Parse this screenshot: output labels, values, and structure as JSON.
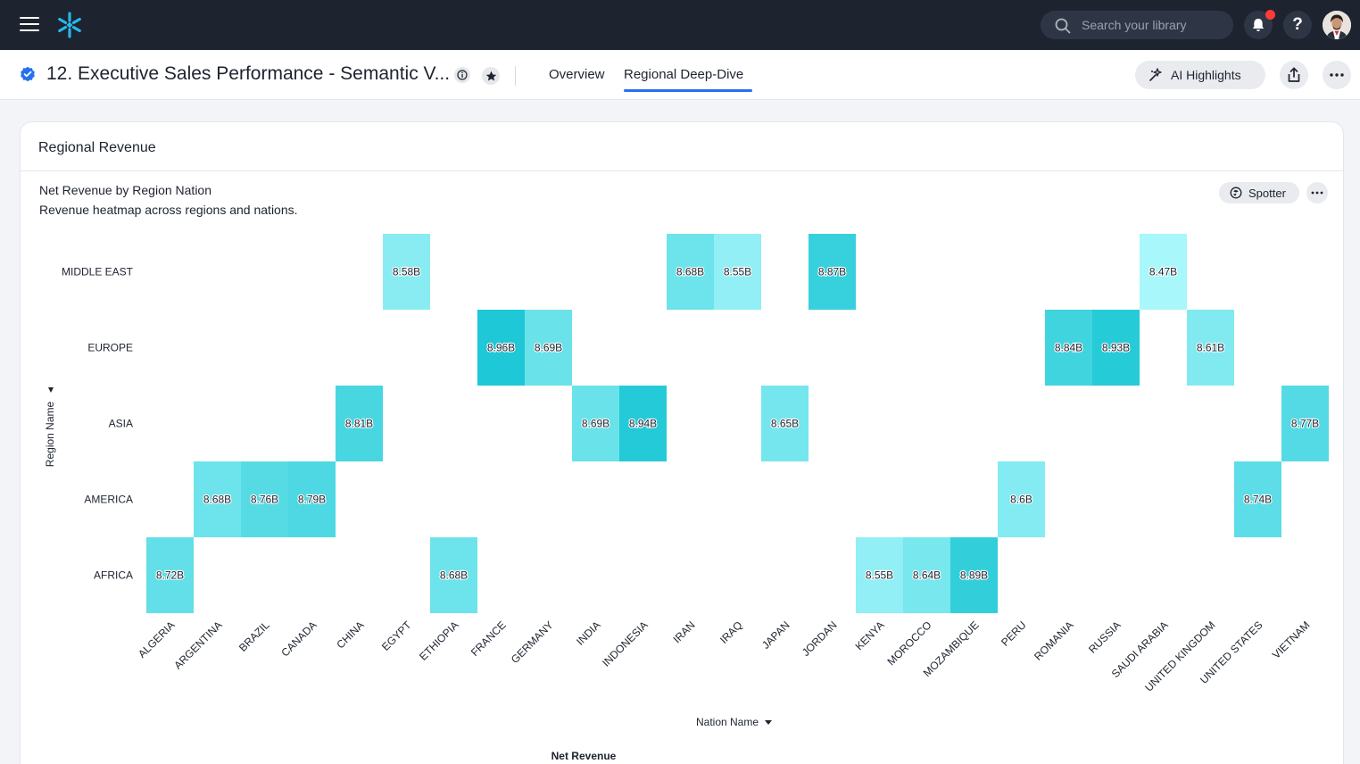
{
  "topbar": {
    "search_placeholder": "Search your library"
  },
  "header": {
    "title": "12. Executive Sales Performance - Semantic V...",
    "tabs": [
      {
        "label": "Overview",
        "active": false
      },
      {
        "label": "Regional Deep-Dive",
        "active": true
      }
    ],
    "ai_button_label": "AI Highlights"
  },
  "card": {
    "title": "Regional Revenue",
    "viz_title": "Net Revenue by Region Nation",
    "viz_subtitle": "Revenue heatmap across regions and nations.",
    "spotter_label": "Spotter"
  },
  "colors": {
    "accent": "#2770ef",
    "topbar": "#1d232f",
    "heat_low": "#a8f7fb",
    "heat_high": "#1ec8d6"
  },
  "chart_data": {
    "type": "heatmap",
    "xlabel": "Nation Name",
    "ylabel": "Region Name",
    "legend_title": "Net Revenue",
    "x": [
      "ALGERIA",
      "ARGENTINA",
      "BRAZIL",
      "CANADA",
      "CHINA",
      "EGYPT",
      "ETHIOPIA",
      "FRANCE",
      "GERMANY",
      "INDIA",
      "INDONESIA",
      "IRAN",
      "IRAQ",
      "JAPAN",
      "JORDAN",
      "KENYA",
      "MOROCCO",
      "MOZAMBIQUE",
      "PERU",
      "ROMANIA",
      "RUSSIA",
      "SAUDI ARABIA",
      "UNITED KINGDOM",
      "UNITED STATES",
      "VIETNAM"
    ],
    "y": [
      "MIDDLE EAST",
      "EUROPE",
      "ASIA",
      "AMERICA",
      "AFRICA"
    ],
    "cells": [
      {
        "x": "EGYPT",
        "y": "MIDDLE EAST",
        "value": 8.58,
        "label": "8.58B"
      },
      {
        "x": "IRAN",
        "y": "MIDDLE EAST",
        "value": 8.68,
        "label": "8.68B"
      },
      {
        "x": "IRAQ",
        "y": "MIDDLE EAST",
        "value": 8.55,
        "label": "8.55B"
      },
      {
        "x": "JORDAN",
        "y": "MIDDLE EAST",
        "value": 8.87,
        "label": "8.87B"
      },
      {
        "x": "SAUDI ARABIA",
        "y": "MIDDLE EAST",
        "value": 8.47,
        "label": "8.47B"
      },
      {
        "x": "FRANCE",
        "y": "EUROPE",
        "value": 8.96,
        "label": "8.96B"
      },
      {
        "x": "GERMANY",
        "y": "EUROPE",
        "value": 8.69,
        "label": "8.69B"
      },
      {
        "x": "ROMANIA",
        "y": "EUROPE",
        "value": 8.84,
        "label": "8.84B"
      },
      {
        "x": "RUSSIA",
        "y": "EUROPE",
        "value": 8.93,
        "label": "8.93B"
      },
      {
        "x": "UNITED KINGDOM",
        "y": "EUROPE",
        "value": 8.61,
        "label": "8.61B"
      },
      {
        "x": "CHINA",
        "y": "ASIA",
        "value": 8.81,
        "label": "8.81B"
      },
      {
        "x": "INDIA",
        "y": "ASIA",
        "value": 8.69,
        "label": "8.69B"
      },
      {
        "x": "INDONESIA",
        "y": "ASIA",
        "value": 8.94,
        "label": "8.94B"
      },
      {
        "x": "JAPAN",
        "y": "ASIA",
        "value": 8.65,
        "label": "8.65B"
      },
      {
        "x": "VIETNAM",
        "y": "ASIA",
        "value": 8.77,
        "label": "8.77B"
      },
      {
        "x": "ARGENTINA",
        "y": "AMERICA",
        "value": 8.68,
        "label": "8.68B"
      },
      {
        "x": "BRAZIL",
        "y": "AMERICA",
        "value": 8.76,
        "label": "8.76B"
      },
      {
        "x": "CANADA",
        "y": "AMERICA",
        "value": 8.79,
        "label": "8.79B"
      },
      {
        "x": "PERU",
        "y": "AMERICA",
        "value": 8.6,
        "label": "8.6B"
      },
      {
        "x": "UNITED STATES",
        "y": "AMERICA",
        "value": 8.74,
        "label": "8.74B"
      },
      {
        "x": "ALGERIA",
        "y": "AFRICA",
        "value": 8.72,
        "label": "8.72B"
      },
      {
        "x": "ETHIOPIA",
        "y": "AFRICA",
        "value": 8.68,
        "label": "8.68B"
      },
      {
        "x": "KENYA",
        "y": "AFRICA",
        "value": 8.55,
        "label": "8.55B"
      },
      {
        "x": "MOROCCO",
        "y": "AFRICA",
        "value": 8.64,
        "label": "8.64B"
      },
      {
        "x": "MOZAMBIQUE",
        "y": "AFRICA",
        "value": 8.89,
        "label": "8.89B"
      }
    ]
  }
}
